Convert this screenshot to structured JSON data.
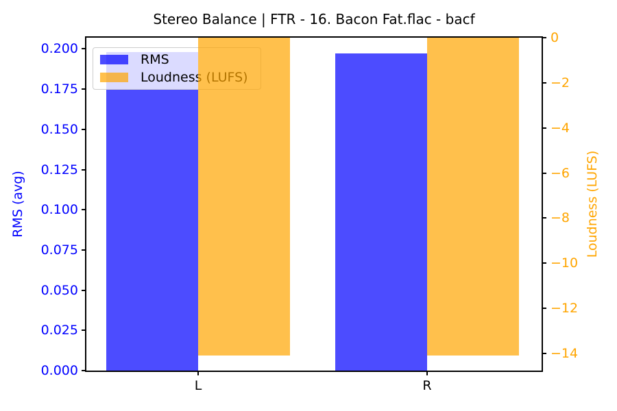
{
  "figure": {
    "background": "#ffffff"
  },
  "chart_data": {
    "type": "bar",
    "title": "Stereo Balance | FTR - 16. Bacon Fat.flac - bacf",
    "categories": [
      "L",
      "R"
    ],
    "series": [
      {
        "name": "RMS",
        "axis": "left",
        "color": "rgba(0,0,255,0.7)",
        "values": [
          0.198,
          0.197
        ]
      },
      {
        "name": "Loudness (LUFS)",
        "axis": "right",
        "color": "rgba(255,165,0,0.7)",
        "values": [
          -14.1,
          -14.1
        ]
      }
    ],
    "xlabel": "",
    "ylabel_left": "RMS (avg)",
    "ylabel_right": "Loudness (LUFS)",
    "ylim_left": [
      0,
      0.207
    ],
    "ylim_right": [
      -14.76,
      0
    ],
    "yticks_left": {
      "values": [
        0,
        0.025,
        0.05,
        0.075,
        0.1,
        0.125,
        0.15,
        0.175,
        0.2
      ],
      "labels": [
        "0.000",
        "0.025",
        "0.050",
        "0.075",
        "0.100",
        "0.125",
        "0.150",
        "0.175",
        "0.200"
      ]
    },
    "yticks_right": {
      "values": [
        0,
        -2,
        -4,
        -6,
        -8,
        -10,
        -12,
        -14
      ],
      "labels": [
        "0",
        "−2",
        "−4",
        "−6",
        "−8",
        "−10",
        "−12",
        "−14"
      ]
    },
    "legend": {
      "position": "upper left",
      "entries": [
        "RMS",
        "Loudness (LUFS)"
      ]
    },
    "grid": false,
    "colors": {
      "left_axis_text": "#0000ff",
      "right_axis_text": "#ffa500",
      "tick_mark": "#000000",
      "title_text": "#000000"
    }
  }
}
